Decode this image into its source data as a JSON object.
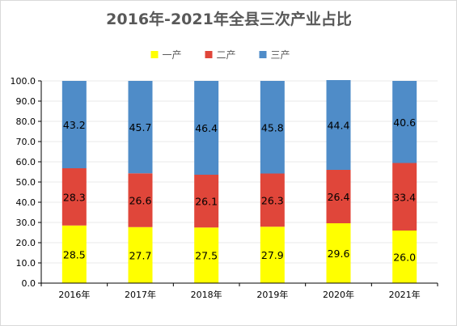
{
  "chart_data": {
    "type": "bar",
    "stacked": true,
    "title": "2016年-2021年全县三次产业占比",
    "xlabel": "",
    "ylabel": "",
    "categories": [
      "2016年",
      "2017年",
      "2018年",
      "2019年",
      "2020年",
      "2021年"
    ],
    "series": [
      {
        "name": "一产",
        "color": "#ffff00",
        "values": [
          28.5,
          27.7,
          27.5,
          27.9,
          29.6,
          26.0
        ]
      },
      {
        "name": "二产",
        "color": "#e0463a",
        "values": [
          28.3,
          26.6,
          26.1,
          26.3,
          26.4,
          33.4
        ]
      },
      {
        "name": "三产",
        "color": "#4f8cc8",
        "values": [
          43.2,
          45.7,
          46.4,
          45.8,
          44.4,
          40.6
        ]
      }
    ],
    "ylim": [
      0,
      100
    ],
    "yticks": [
      "0.0",
      "10.0",
      "20.0",
      "30.0",
      "40.0",
      "50.0",
      "60.0",
      "70.0",
      "80.0",
      "90.0",
      "100.0"
    ],
    "legend_position": "top",
    "grid": true
  }
}
